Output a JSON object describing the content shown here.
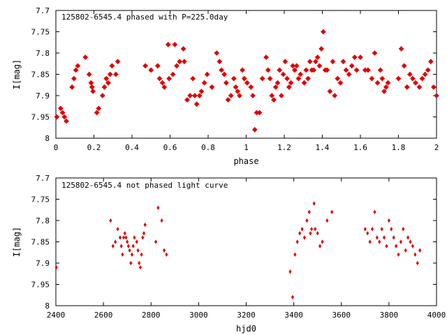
{
  "chart_data": [
    {
      "type": "scatter",
      "title": "125802-6545.4 phased with P=225.0day",
      "xlabel": "phase",
      "ylabel": "I[mag]",
      "xlim": [
        0,
        2
      ],
      "ylim": [
        8,
        7.7
      ],
      "y_inverted": true,
      "x_ticks": [
        0,
        0.2,
        0.4,
        0.6,
        0.8,
        1,
        1.2,
        1.4,
        1.6,
        1.8,
        2
      ],
      "y_ticks": [
        7.7,
        7.75,
        7.8,
        7.85,
        7.9,
        7.95,
        8
      ],
      "grid": false,
      "legend": "none",
      "marker_color": "#e00000",
      "marker": "star",
      "series": [
        {
          "x": [
            0.005,
            0.025,
            0.035,
            0.045,
            0.055,
            0.085,
            0.095,
            0.105,
            0.115,
            0.155,
            0.175,
            0.185,
            0.19,
            0.195,
            0.215,
            0.225,
            0.245,
            0.255,
            0.265,
            0.275,
            0.285,
            0.295,
            0.315,
            0.325,
            0.47,
            0.5,
            0.535,
            0.545,
            0.56,
            0.57,
            0.59,
            0.595,
            0.615,
            0.625,
            0.635,
            0.65,
            0.67,
            0.675,
            0.69,
            0.705,
            0.72,
            0.73,
            0.74,
            0.755,
            0.765,
            0.78,
            0.795,
            0.82,
            0.845,
            0.86,
            0.87,
            0.885,
            0.895,
            0.905,
            0.92,
            0.935,
            0.945,
            0.955,
            0.965,
            0.98,
            0.99,
            1.005,
            1.025,
            1.035,
            1.045,
            1.055,
            1.07,
            1.085,
            1.105,
            1.115,
            1.125,
            1.135,
            1.145,
            1.155,
            1.165,
            1.175,
            1.185,
            1.195,
            1.205,
            1.215,
            1.225,
            1.235,
            1.245,
            1.255,
            1.265,
            1.275,
            1.285,
            1.305,
            1.315,
            1.325,
            1.335,
            1.345,
            1.355,
            1.365,
            1.375,
            1.385,
            1.395,
            1.405,
            1.415,
            1.425,
            1.44,
            1.455,
            1.465,
            1.48,
            1.495,
            1.51,
            1.525,
            1.54,
            1.555,
            1.57,
            1.58,
            1.6,
            1.625,
            1.64,
            1.66,
            1.675,
            1.69,
            1.705,
            1.715,
            1.725,
            1.735,
            1.745,
            1.8,
            1.815,
            1.83,
            1.845,
            1.86,
            1.875,
            1.89,
            1.91,
            1.925,
            1.94,
            1.955,
            1.97,
            1.985,
            2.0
          ],
          "y": [
            7.95,
            7.93,
            7.94,
            7.95,
            7.96,
            7.88,
            7.86,
            7.84,
            7.83,
            7.81,
            7.85,
            7.87,
            7.88,
            7.89,
            7.94,
            7.93,
            7.9,
            7.88,
            7.86,
            7.87,
            7.85,
            7.83,
            7.85,
            7.82,
            7.83,
            7.84,
            7.83,
            7.86,
            7.87,
            7.88,
            7.78,
            7.86,
            7.85,
            7.78,
            7.83,
            7.82,
            7.79,
            7.82,
            7.91,
            7.9,
            7.86,
            7.9,
            7.92,
            7.9,
            7.89,
            7.87,
            7.85,
            7.88,
            7.8,
            7.82,
            7.84,
            7.85,
            7.87,
            7.91,
            7.9,
            7.86,
            7.88,
            7.89,
            7.9,
            7.84,
            7.86,
            7.87,
            7.88,
            7.9,
            7.98,
            7.94,
            7.94,
            7.86,
            7.81,
            7.84,
            7.86,
            7.9,
            7.91,
            7.88,
            7.87,
            7.84,
            7.9,
            7.85,
            7.82,
            7.86,
            7.88,
            7.87,
            7.83,
            7.84,
            7.83,
            7.86,
            7.85,
            7.87,
            7.84,
            7.86,
            7.82,
            7.84,
            7.84,
            7.82,
            7.81,
            7.83,
            7.79,
            7.75,
            7.84,
            7.84,
            7.89,
            7.82,
            7.9,
            7.86,
            7.87,
            7.82,
            7.84,
            7.85,
            7.83,
            7.81,
            7.84,
            7.81,
            7.84,
            7.84,
            7.86,
            7.8,
            7.87,
            7.84,
            7.86,
            7.89,
            7.88,
            7.87,
            7.86,
            7.79,
            7.83,
            7.88,
            7.85,
            7.86,
            7.87,
            7.88,
            7.86,
            7.85,
            7.84,
            7.82,
            7.88,
            7.9
          ]
        }
      ]
    },
    {
      "type": "scatter",
      "title": "125802-6545.4 not phased light curve",
      "xlabel": "hjd0",
      "ylabel": "I[mag]",
      "xlim": [
        2400,
        4000
      ],
      "ylim": [
        8,
        7.7
      ],
      "y_inverted": true,
      "x_ticks": [
        2400,
        2600,
        2800,
        3000,
        3200,
        3400,
        3600,
        3800,
        4000
      ],
      "y_ticks": [
        7.7,
        7.75,
        7.8,
        7.85,
        7.9,
        7.95,
        8
      ],
      "grid": false,
      "legend": "none",
      "marker_color": "#e00000",
      "marker": "diamond",
      "series": [
        {
          "x": [
            2402,
            2630,
            2640,
            2650,
            2660,
            2670,
            2675,
            2680,
            2685,
            2690,
            2695,
            2700,
            2705,
            2710,
            2715,
            2720,
            2725,
            2730,
            2740,
            2745,
            2750,
            2755,
            2760,
            2765,
            2770,
            2775,
            2820,
            2830,
            2845,
            2855,
            2865,
            3385,
            3395,
            3405,
            3415,
            3425,
            3435,
            3445,
            3455,
            3465,
            3470,
            3475,
            3485,
            3490,
            3500,
            3510,
            3520,
            3540,
            3560,
            3700,
            3710,
            3720,
            3730,
            3740,
            3750,
            3760,
            3770,
            3780,
            3790,
            3800,
            3810,
            3820,
            3830,
            3840,
            3850,
            3860,
            3870,
            3880,
            3890,
            3900,
            3910,
            3920,
            3930
          ],
          "y": [
            7.91,
            7.8,
            7.86,
            7.85,
            7.82,
            7.84,
            7.86,
            7.88,
            7.84,
            7.83,
            7.84,
            7.85,
            7.86,
            7.87,
            7.9,
            7.88,
            7.86,
            7.84,
            7.85,
            7.87,
            7.9,
            7.91,
            7.88,
            7.84,
            7.83,
            7.81,
            7.85,
            7.77,
            7.8,
            7.87,
            7.88,
            7.92,
            7.98,
            7.88,
            7.85,
            7.83,
            7.82,
            7.84,
            7.8,
            7.78,
            7.83,
            7.82,
            7.76,
            7.82,
            7.83,
            7.86,
            7.85,
            7.8,
            7.78,
            7.82,
            7.83,
            7.85,
            7.82,
            7.78,
            7.84,
            7.85,
            7.82,
            7.84,
            7.86,
            7.8,
            7.82,
            7.84,
            7.86,
            7.88,
            7.85,
            7.82,
            7.87,
            7.84,
            7.85,
            7.86,
            7.88,
            7.9,
            7.87
          ]
        }
      ]
    }
  ]
}
